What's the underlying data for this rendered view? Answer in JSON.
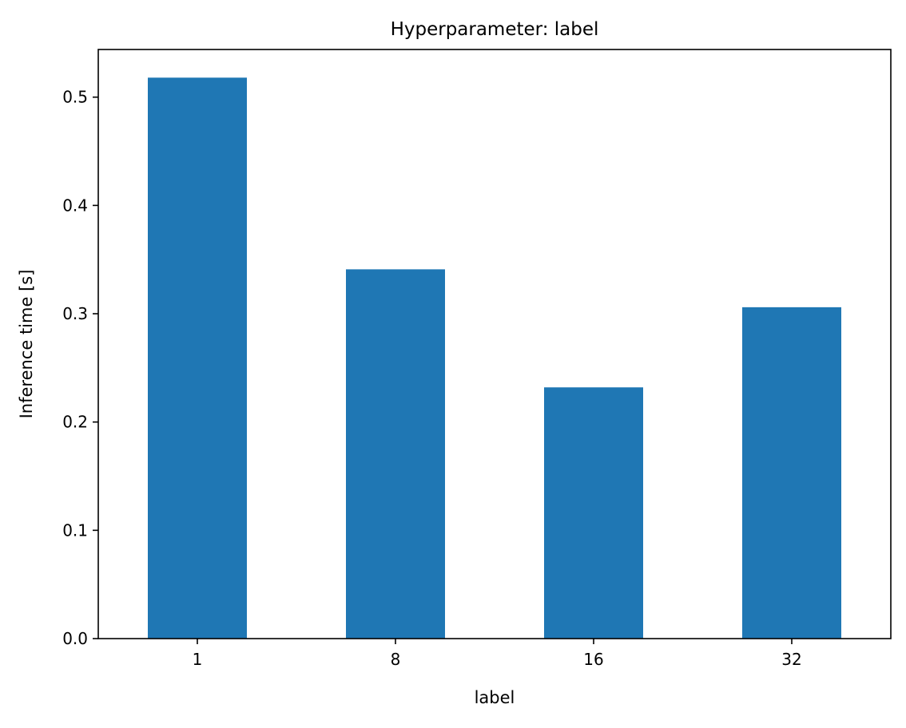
{
  "chart_data": {
    "type": "bar",
    "title": "Hyperparameter: label",
    "xlabel": "label",
    "ylabel": "Inference time [s]",
    "categories": [
      "1",
      "8",
      "16",
      "32"
    ],
    "values": [
      0.518,
      0.341,
      0.232,
      0.306
    ],
    "ylim": [
      0,
      0.544
    ],
    "yticks": [
      0.0,
      0.1,
      0.2,
      0.3,
      0.4,
      0.5
    ],
    "ytick_labels": [
      "0.0",
      "0.1",
      "0.2",
      "0.3",
      "0.4",
      "0.5"
    ],
    "grid": false,
    "legend": "none",
    "bar_color": "#1f77b4"
  }
}
